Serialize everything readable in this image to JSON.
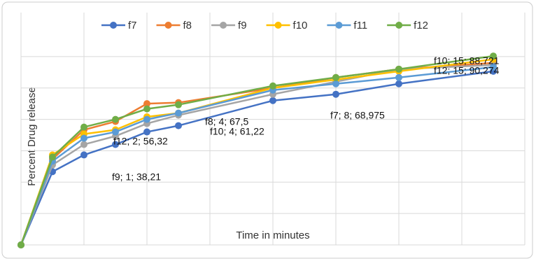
{
  "chart_data": {
    "type": "line",
    "y_label": "Percent Drug release",
    "x_label": "Time in minutes",
    "x": [
      0,
      1,
      2,
      3,
      4,
      5,
      8,
      10,
      12,
      15
    ],
    "xlim": [
      0,
      16
    ],
    "ylim": [
      0,
      100
    ],
    "yticks": [
      0,
      15,
      30,
      45,
      60,
      75,
      90
    ],
    "grid": true,
    "legend": "top",
    "series": [
      {
        "name": "f7",
        "color": "#4472c4",
        "values": [
          0,
          35,
          43,
          48,
          54,
          57,
          68.975,
          72,
          77,
          83
        ]
      },
      {
        "name": "f8",
        "color": "#ed7d31",
        "values": [
          0,
          41,
          55,
          59,
          67.5,
          68,
          75,
          80,
          84,
          87
        ]
      },
      {
        "name": "f9",
        "color": "#a5a5a5",
        "values": [
          0,
          38.21,
          48,
          52,
          58,
          62,
          72,
          78,
          84,
          86
        ]
      },
      {
        "name": "f10",
        "color": "#ffc000",
        "values": [
          0,
          43,
          53,
          55,
          61.22,
          63,
          75,
          79,
          83,
          88.721
        ]
      },
      {
        "name": "f11",
        "color": "#5b9bd5",
        "values": [
          0,
          40,
          51,
          54,
          60,
          63,
          74,
          77,
          80,
          85
        ]
      },
      {
        "name": "f12",
        "color": "#70ad47",
        "values": [
          0,
          42,
          56.32,
          60,
          65,
          67,
          76,
          80,
          84,
          90.274
        ]
      }
    ],
    "annotations": [
      "f9; 1; 38,21",
      "f12; 2; 56,32",
      "f10; 4; 61,22",
      "f8; 4; 67,5",
      "f7; 8; 68,975",
      "f10; 15; 88,721",
      "f12; 15; 90,274"
    ]
  }
}
